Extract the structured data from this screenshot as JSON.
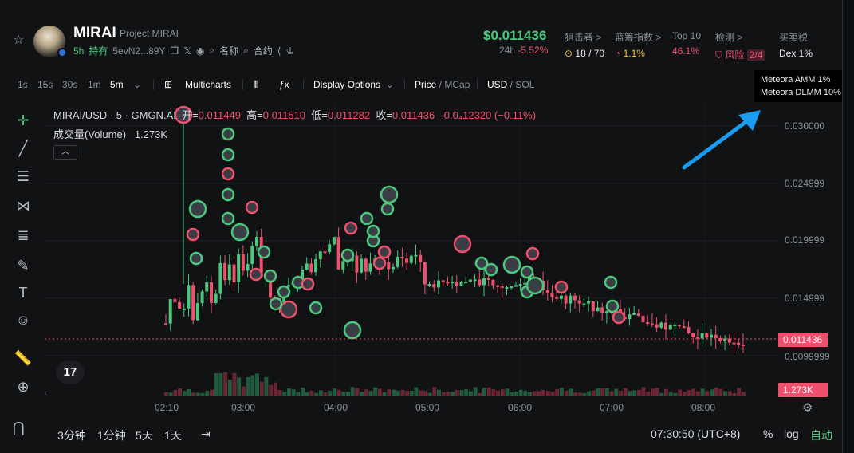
{
  "header": {
    "token_name": "MIRAI",
    "token_full": "Project MIRAI",
    "age": "5h",
    "hold": "持有",
    "address": "5evN2...89Y",
    "name_label": "名称",
    "contract_label": "合约",
    "price": "$0.011436",
    "change_period": "24h",
    "change_pct": "-5.52%",
    "stats": [
      {
        "label": "狙击者 >",
        "value": "18 / 70"
      },
      {
        "label": "蓝筹指数 >",
        "value": "1.1%"
      },
      {
        "label": "Top 10",
        "value": "46.1%"
      },
      {
        "label": "检测 >",
        "value": "风险",
        "badge": "2/4"
      },
      {
        "label": "买卖税",
        "value": "Dex 1%"
      }
    ]
  },
  "toolbar": {
    "intervals": [
      "1s",
      "15s",
      "30s",
      "1m",
      "5m"
    ],
    "active_interval": "5m",
    "multicharts": "Multicharts",
    "display_options": "Display Options",
    "price_label": "Price",
    "mcap_label": "MCap",
    "usd_label": "USD",
    "sol_label": "SOL"
  },
  "tooltip": {
    "line1": "Meteora AMM 1%",
    "line2": "Meteora DLMM 10%"
  },
  "legend": {
    "symbol": "MIRAI/USD · 5 · GMGN.AI",
    "open_lbl": "开=",
    "open": "0.011449",
    "high_lbl": "高=",
    "high": "0.011510",
    "low_lbl": "低=",
    "low": "0.011282",
    "close_lbl": "收=",
    "close": "0.011436",
    "change": "-0.0₄12320 (−0.11%)",
    "volume_lbl": "成交量(Volume)",
    "volume": "1.273K"
  },
  "yaxis": [
    "0.030000",
    "0.024999",
    "0.019999",
    "0.014999",
    "0.0099999"
  ],
  "current_price_tag": "0.011436",
  "volume_tag": "1.273K",
  "xaxis": [
    "02:10",
    "03:00",
    "04:00",
    "05:00",
    "06:00",
    "07:00",
    "08:00"
  ],
  "bottom": {
    "ranges": [
      "3分钟",
      "1分钟",
      "5天",
      "1天"
    ],
    "clock": "07:30:50 (UTC+8)",
    "pct": "%",
    "log": "log",
    "auto": "自动"
  },
  "colors": {
    "up": "#4cc77d",
    "down": "#f0506e",
    "arrow": "#1a9cf0"
  }
}
